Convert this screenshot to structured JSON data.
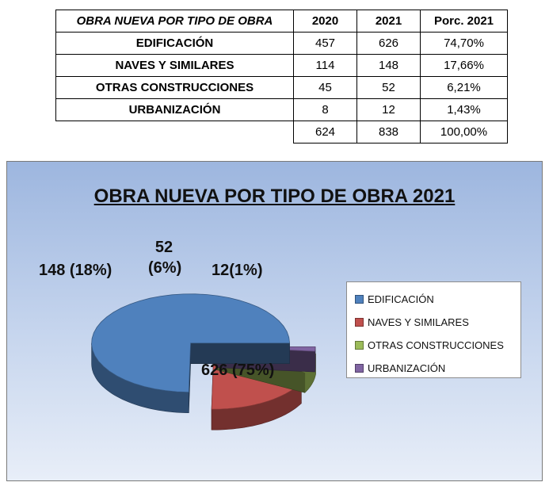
{
  "table": {
    "header": {
      "title": "OBRA NUEVA POR TIPO DE OBRA",
      "col_2020": "2020",
      "col_2021": "2021",
      "col_pct": "Porc. 2021"
    },
    "rows": [
      {
        "label": "EDIFICACIÓN",
        "v2020": "457",
        "v2021": "626",
        "pct": "74,70%"
      },
      {
        "label": "NAVES Y SIMILARES",
        "v2020": "114",
        "v2021": "148",
        "pct": "17,66%"
      },
      {
        "label": "OTRAS CONSTRUCCIONES",
        "v2020": "45",
        "v2021": "52",
        "pct": "6,21%"
      },
      {
        "label": "URBANIZACIÓN",
        "v2020": "8",
        "v2021": "12",
        "pct": "1,43%"
      }
    ],
    "total": {
      "v2020": "624",
      "v2021": "838",
      "pct": "100,00%"
    }
  },
  "chart_data": {
    "type": "pie",
    "title": "OBRA NUEVA POR TIPO DE OBRA 2021",
    "exploded": true,
    "three_d": true,
    "legend_position": "right",
    "categories": [
      "EDIFICACIÓN",
      "NAVES Y SIMILARES",
      "OTRAS CONSTRUCCIONES",
      "URBANIZACIÓN"
    ],
    "values": [
      626,
      148,
      52,
      12
    ],
    "percent": [
      75,
      18,
      6,
      1
    ],
    "data_labels": [
      "626 (75%)",
      "148 (18%)",
      "52 (6%)",
      "12(1%)"
    ],
    "colors": [
      "#4f81bd",
      "#c0504d",
      "#9bbb59",
      "#8064a2"
    ]
  }
}
